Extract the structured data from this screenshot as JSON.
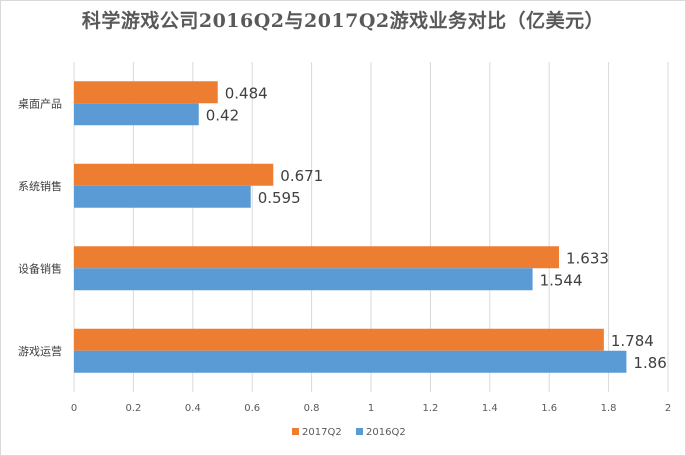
{
  "chart_data": {
    "type": "bar",
    "orientation": "horizontal",
    "title": "科学游戏公司2016Q2与2017Q2游戏业务对比（亿美元）",
    "categories": [
      "桌面产品",
      "系统销售",
      "设备销售",
      "游戏运营"
    ],
    "series": [
      {
        "name": "2017Q2",
        "color": "#ED7D31",
        "values": [
          0.484,
          0.671,
          1.633,
          1.784
        ],
        "labels": [
          "0.484",
          "0.671",
          "1.633",
          "1.784"
        ]
      },
      {
        "name": "2016Q2",
        "color": "#5B9BD5",
        "values": [
          0.42,
          0.595,
          1.544,
          1.86
        ],
        "labels": [
          "0.42",
          "0.595",
          "1.544",
          "1.86"
        ]
      }
    ],
    "xlim": [
      0,
      2
    ],
    "xticks": [
      "0",
      "0.2",
      "0.4",
      "0.6",
      "0.8",
      "1",
      "1.2",
      "1.4",
      "1.6",
      "1.8",
      "2"
    ],
    "grid": true,
    "legend_position": "bottom",
    "xlabel": "",
    "ylabel": ""
  }
}
